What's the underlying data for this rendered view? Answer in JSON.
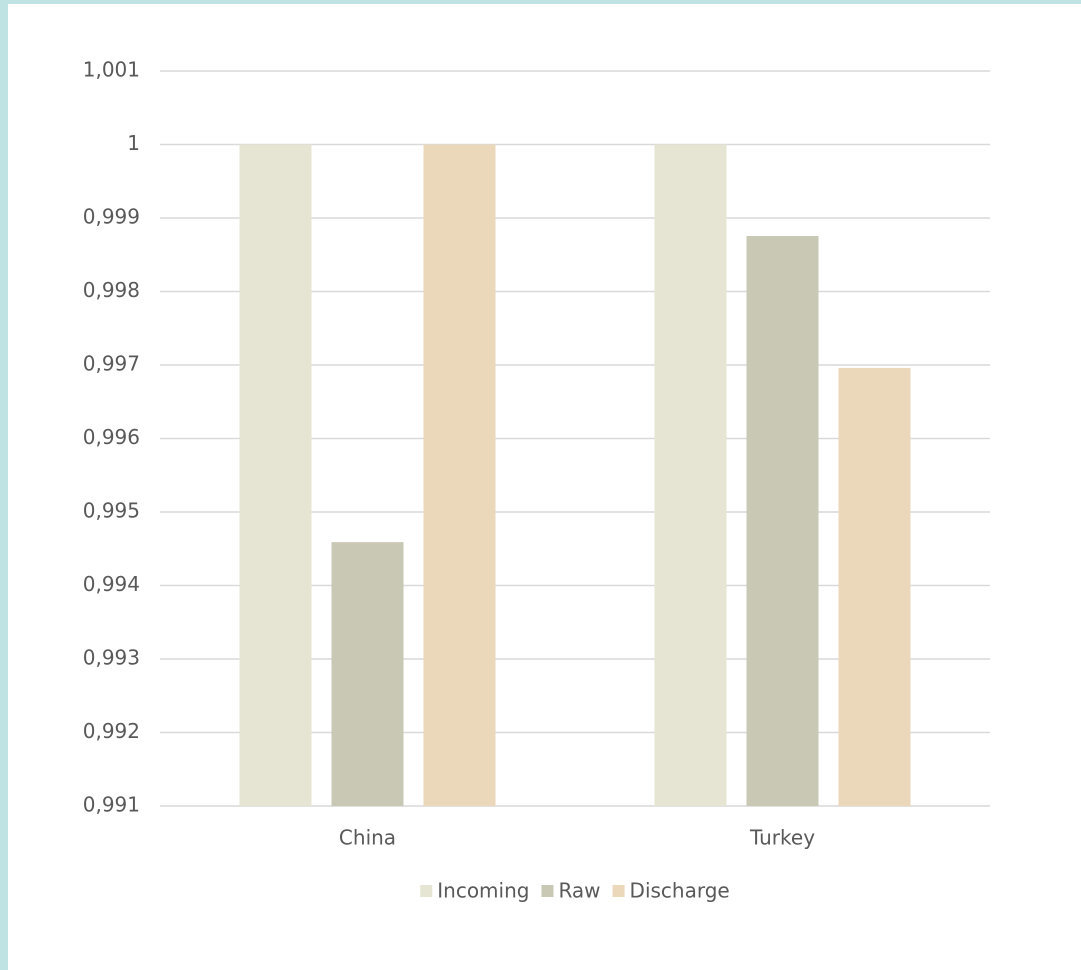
{
  "chart_data": {
    "type": "bar",
    "categories": [
      "China",
      "Turkey"
    ],
    "series": [
      {
        "name": "Incoming",
        "color": "#e6e5d3",
        "values": [
          1,
          1
        ]
      },
      {
        "name": "Raw",
        "color": "#c9c8b5",
        "values": [
          0.99459,
          0.998755
        ]
      },
      {
        "name": "Discharge",
        "color": "#ebd7b9",
        "values": [
          1,
          0.99696
        ]
      }
    ],
    "ylim": [
      0.991,
      1.001
    ],
    "yticks": [
      {
        "value": 0.991,
        "label": "0,991"
      },
      {
        "value": 0.992,
        "label": "0,992"
      },
      {
        "value": 0.993,
        "label": "0,993"
      },
      {
        "value": 0.994,
        "label": "0,994"
      },
      {
        "value": 0.995,
        "label": "0,995"
      },
      {
        "value": 0.996,
        "label": "0,996"
      },
      {
        "value": 0.997,
        "label": "0,997"
      },
      {
        "value": 0.998,
        "label": "0,998"
      },
      {
        "value": 0.999,
        "label": "0,999"
      },
      1,
      {
        "value": 1.001,
        "label": "1,001"
      }
    ],
    "grid": true,
    "legend": "bottom"
  }
}
